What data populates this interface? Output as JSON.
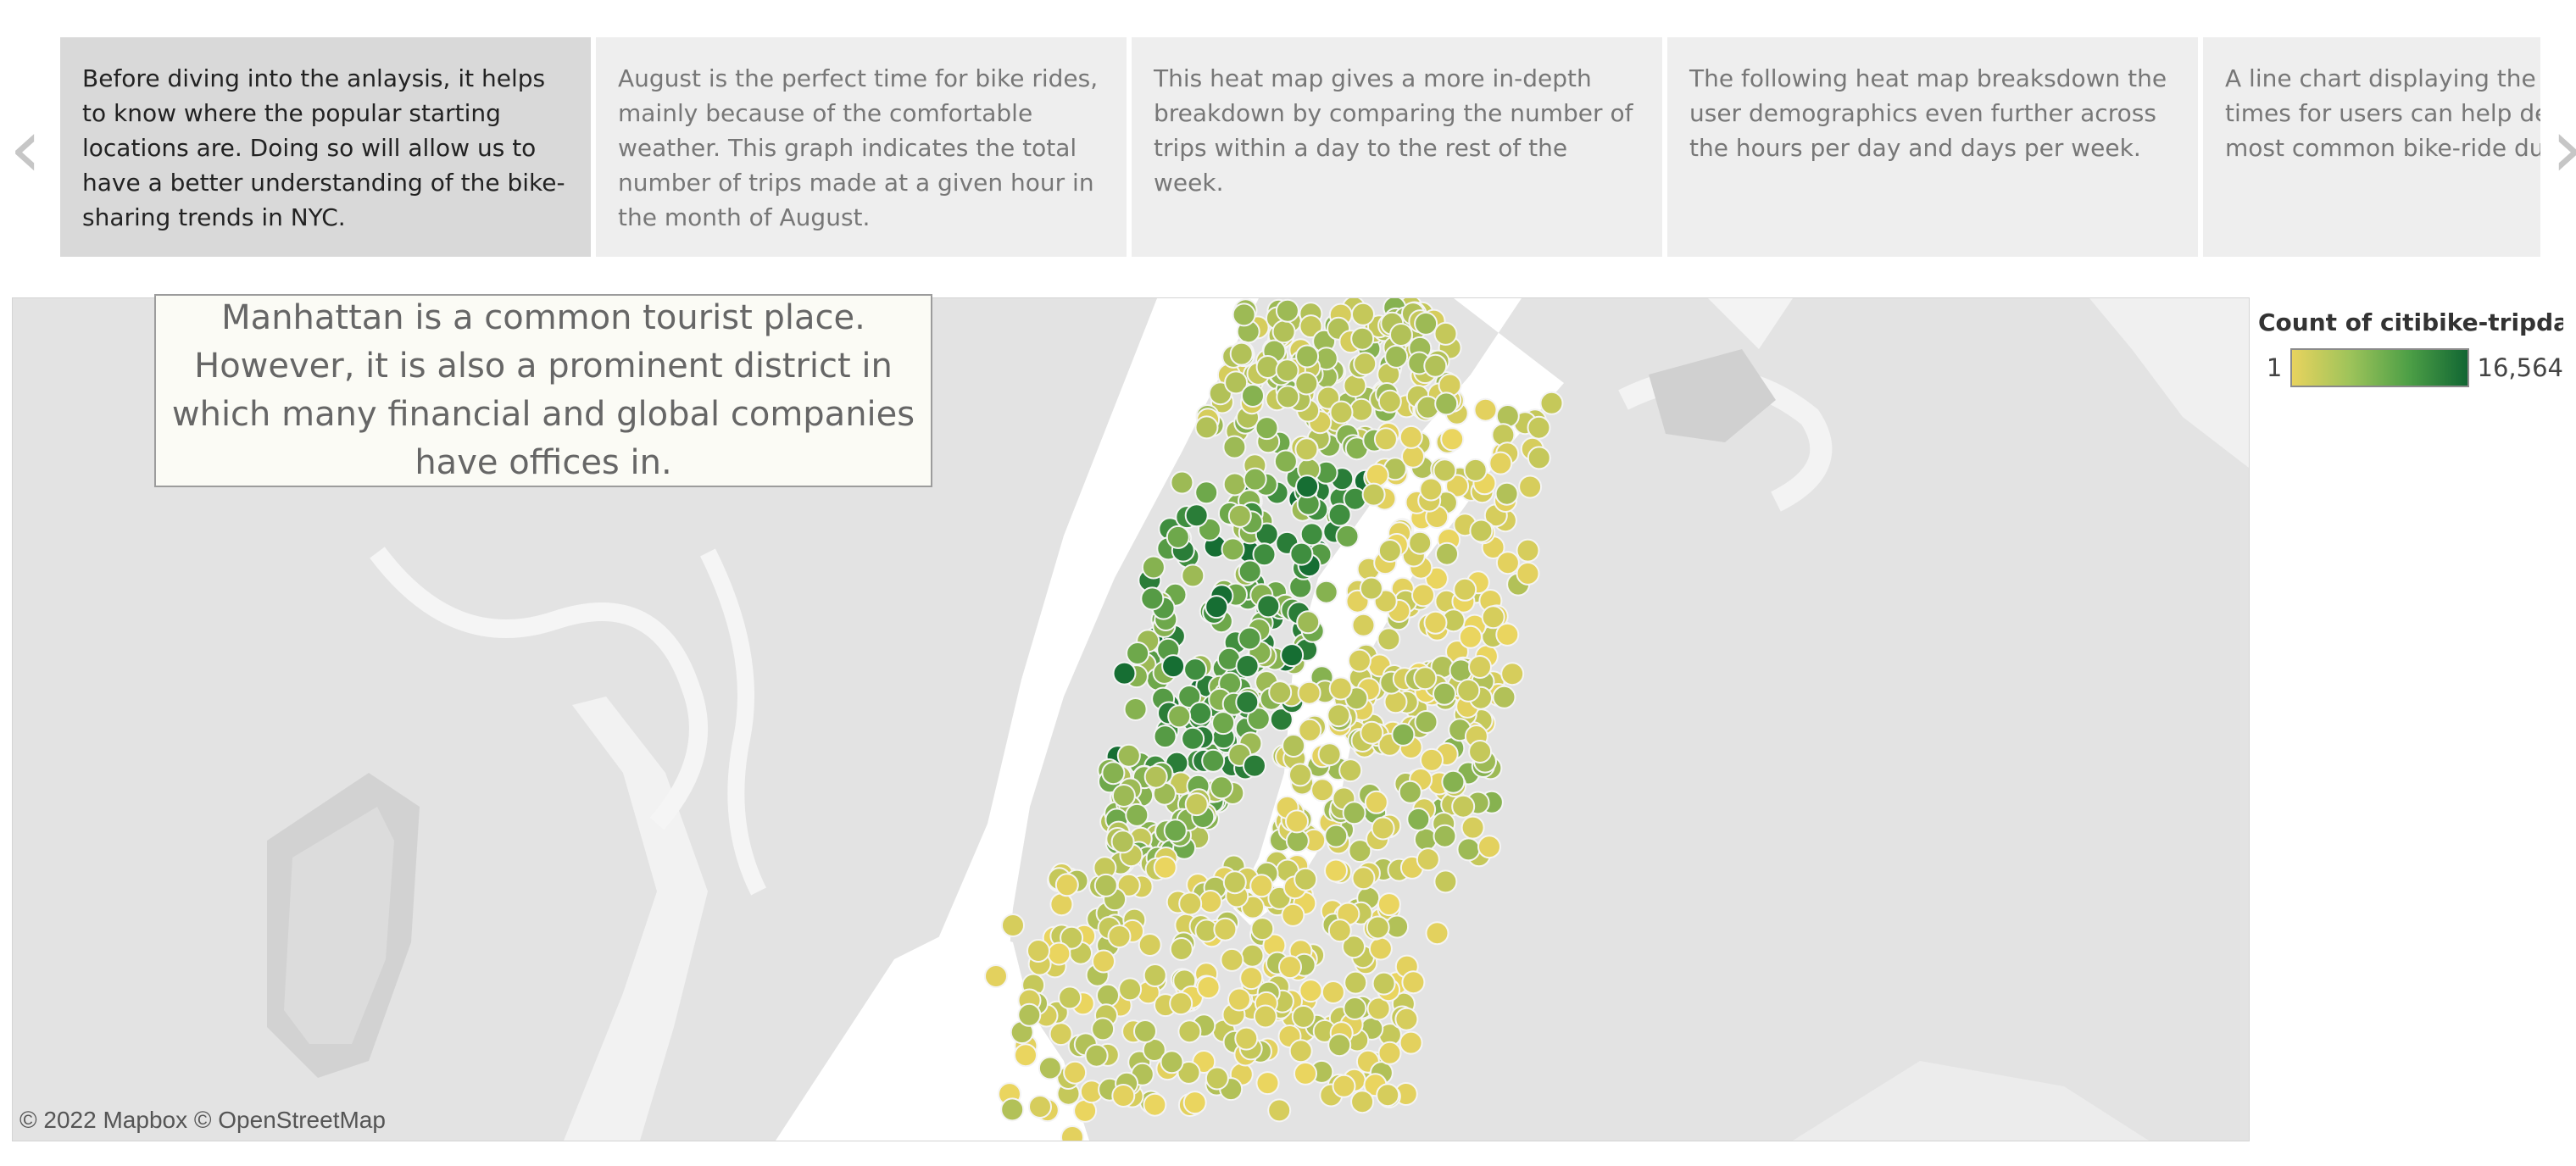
{
  "story": {
    "points": [
      "Before diving into the anlaysis, it helps to know where the popular starting locations are. Doing so  will allow us to have a better understanding of the bike-sharing trends in NYC.",
      "August is the perfect time for bike rides, mainly because of the comfortable weather. This graph indicates the total number of trips made at a given hour in the month of August.",
      "This heat map gives a more in-depth breakdown by comparing the number of trips within a day to the rest of the week.",
      "The following heat map breaksdown the user demographics even further across the hours per day and days per week.",
      "A line chart displaying the trip duration times for users can help determine the most common bike-ride durations."
    ],
    "active_index": 0
  },
  "nav": {
    "prev": "‹",
    "next": "›",
    "prev_icon": "chevron-left-icon",
    "next_icon": "chevron-right-icon"
  },
  "map": {
    "annotation": "Manhattan is a common tourist place. However, it is also a prominent district in which many financial and global companies have offices in.",
    "attribution": "© 2022 Mapbox  © OpenStreetMap"
  },
  "legend": {
    "title": "Count of citibike-tripdat...",
    "min": "1",
    "max": "16,564",
    "colors": {
      "low": "#e8d35e",
      "mid": "#8fbe55",
      "high": "#116633"
    }
  }
}
